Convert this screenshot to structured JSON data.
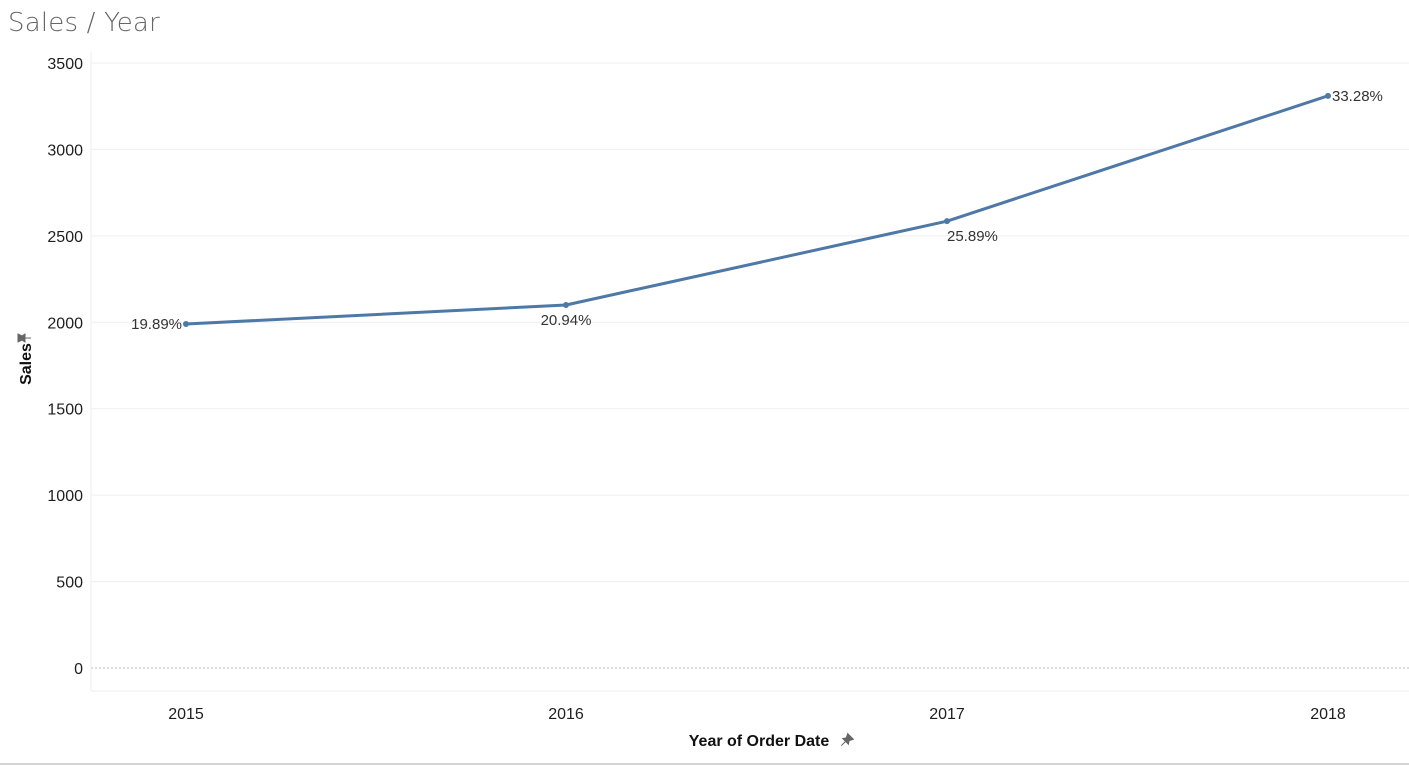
{
  "chart_data": {
    "type": "line",
    "title": "Sales / Year",
    "xlabel": "Year of Order Date",
    "ylabel": "Sales",
    "categories": [
      "2015",
      "2016",
      "2017",
      "2018"
    ],
    "series": [
      {
        "values": [
          1990,
          2100,
          2585,
          3310
        ],
        "labels": [
          "19.89%",
          "20.94%",
          "25.89%",
          "33.28%"
        ]
      }
    ],
    "ylim": [
      0,
      3500
    ],
    "yticks": [
      0,
      500,
      1000,
      1500,
      2000,
      2500,
      3000,
      3500
    ],
    "grid": true,
    "line_color": "#4e79a7",
    "pin_icon": "pin-icon"
  }
}
